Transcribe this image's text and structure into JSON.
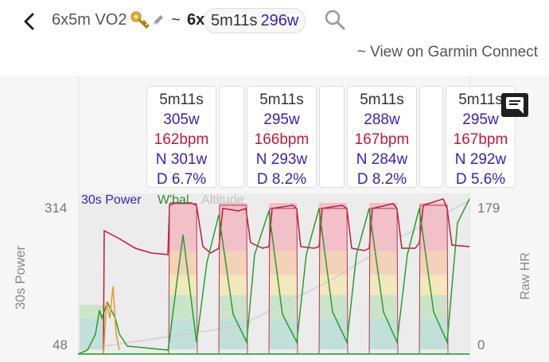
{
  "header": {
    "title": "6x5m VO2",
    "tilde": "~",
    "reps": "6x",
    "summary_duration": "5m11s",
    "summary_power": "296w",
    "garmin_link": "~ View on Garmin Connect"
  },
  "intervals": [
    {
      "duration": "5m11s",
      "power": "305w",
      "hr": "162bpm",
      "normalized": "N 301w",
      "decoupling": "D 6.7%"
    },
    {
      "duration": "5m11s",
      "power": "295w",
      "hr": "166bpm",
      "normalized": "N 293w",
      "decoupling": "D 8.2%"
    },
    {
      "duration": "5m11s",
      "power": "288w",
      "hr": "167bpm",
      "normalized": "N 284w",
      "decoupling": "D 8.2%"
    },
    {
      "duration": "5m11s",
      "power": "295w",
      "hr": "167bpm",
      "normalized": "N 292w",
      "decoupling": "D 5.6%"
    }
  ],
  "chart": {
    "left_axis_title": "30s Power",
    "right_axis_title": "Raw HR",
    "left_ticks": {
      "max": "314",
      "min": "48"
    },
    "right_ticks": {
      "max": "179",
      "min": "0"
    },
    "legend": {
      "power": "30s Power",
      "wbal": "W'bal",
      "altitude": "Altitude"
    },
    "colors": {
      "power": "#3b1fb5",
      "hr": "#c2183a",
      "wbal": "#2f9a2f",
      "altitude": "#d0d0d0",
      "zone_red": "#f2b9c2",
      "zone_orange": "#f6cdb0",
      "zone_yellow": "#f5e6b5",
      "zone_green": "#c6e3c3",
      "zone_teal": "#b9ded6"
    }
  },
  "chart_data": {
    "type": "line",
    "title": "",
    "xlabel": "",
    "ylabel": "30s Power",
    "ylabel_right": "Raw HR",
    "ylim": [
      48,
      314
    ],
    "ylim_right": [
      0,
      179
    ],
    "legend_position": "top-left",
    "series": [
      {
        "name": "30s Power",
        "x": [
          0,
          10,
          20,
          25,
          30,
          35,
          40,
          42,
          50,
          60,
          62,
          66,
          68,
          70,
          72,
          80,
          90,
          100,
          110,
          114,
          116,
          120,
          125,
          130,
          135,
          140,
          150,
          160,
          170,
          180,
          185,
          190,
          200,
          210,
          212,
          214,
          216,
          218,
          220,
          225,
          230,
          235,
          240,
          248,
          255,
          262,
          270,
          280,
          300,
          310,
          320,
          330,
          340,
          350,
          360,
          370,
          380,
          390,
          400,
          410,
          420,
          430,
          440,
          450,
          460,
          470,
          480,
          490,
          500,
          510,
          520,
          530,
          540,
          550,
          560,
          570,
          580,
          590
        ],
        "values": [
          50,
          50,
          50,
          50,
          50,
          50,
          50,
          50,
          50,
          50,
          50,
          50,
          50,
          50,
          50,
          50,
          50,
          50,
          50,
          50,
          50,
          50,
          50,
          50,
          50,
          50,
          50,
          50,
          50,
          50,
          50,
          50,
          50,
          50,
          50,
          50,
          50,
          50,
          50,
          50,
          50,
          50,
          50,
          50,
          50,
          50,
          50,
          50,
          50,
          50,
          50,
          50,
          50,
          50,
          50,
          50,
          50,
          50,
          50,
          50,
          50,
          50,
          50,
          50,
          50,
          50,
          50,
          50,
          50,
          50,
          50,
          50,
          50,
          50,
          50,
          50,
          50,
          50
        ]
      },
      {
        "name": "W'bal",
        "x": [
          100,
          105,
          110,
          120,
          130,
          140,
          150,
          160,
          170,
          180,
          190,
          200,
          210,
          230,
          240,
          260,
          280,
          300,
          320,
          340,
          360,
          380,
          400,
          420,
          440,
          460,
          480,
          500,
          520,
          540,
          560,
          580
        ],
        "values": [
          179,
          179,
          179,
          179,
          179,
          179,
          179,
          179,
          179,
          179,
          179,
          179,
          179,
          60,
          179,
          50,
          179,
          50,
          175,
          50,
          179,
          55,
          179,
          55,
          179,
          55,
          179,
          55,
          179,
          55,
          179,
          178
        ]
      },
      {
        "name": "Altitude",
        "x": [
          100,
          200,
          300,
          400,
          500,
          590
        ],
        "values": [
          0,
          20,
          60,
          100,
          140,
          179
        ]
      }
    ]
  }
}
